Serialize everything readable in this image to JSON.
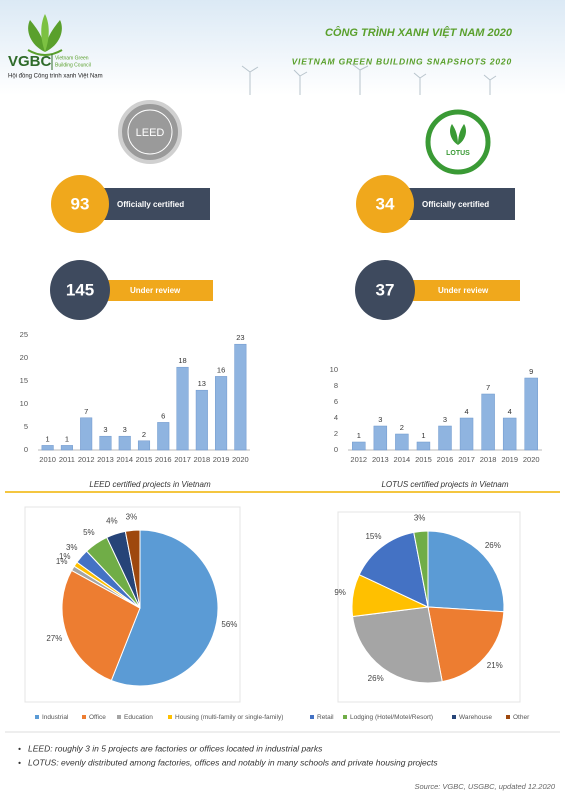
{
  "header": {
    "logo_name": "VGBC",
    "logo_sub1": "Vietnam Green",
    "logo_sub2": "Building Council",
    "logo_vn": "Hội đồng Công trình xanh Việt Nam",
    "title_vn": "CÔNG TRÌNH XANH VIỆT NAM 2020",
    "title_en": "VIETNAM GREEN BUILDING SNAPSHOTS 2020"
  },
  "badges": [
    "LEED",
    "LOTUS"
  ],
  "stats": [
    {
      "value": 93,
      "label": "Officially certified"
    },
    {
      "value": 145,
      "label": "Under review"
    },
    {
      "value": 34,
      "label": "Officially certified"
    },
    {
      "value": 37,
      "label": "Under review"
    }
  ],
  "chart_data": [
    {
      "type": "bar",
      "title": "LEED certified projects in Vietnam",
      "categories": [
        "2010",
        "2011",
        "2012",
        "2013",
        "2014",
        "2015",
        "2016",
        "2017",
        "2018",
        "2019",
        "2020"
      ],
      "values": [
        1,
        1,
        7,
        3,
        3,
        2,
        6,
        18,
        13,
        16,
        23
      ],
      "color": "#8fb4e0",
      "ylim": [
        0,
        25
      ],
      "yticks": [
        0,
        5,
        10,
        15,
        20,
        25
      ]
    },
    {
      "type": "bar",
      "title": "LOTUS certified projects in Vietnam",
      "categories": [
        "2012",
        "2013",
        "2014",
        "2015",
        "2016",
        "2017",
        "2018",
        "2019",
        "2020"
      ],
      "values": [
        1,
        3,
        2,
        1,
        3,
        4,
        7,
        4,
        9
      ],
      "color": "#8fb4e0",
      "ylim": [
        0,
        10
      ],
      "yticks": [
        0,
        2,
        4,
        6,
        8,
        10
      ]
    },
    {
      "type": "pie",
      "categories": [
        "Industrial",
        "Office",
        "Education",
        "Housing (multi-family or single-family)",
        "Retail",
        "Lodging (Hotel/Motel/Resort)",
        "Warehouse",
        "Other"
      ],
      "values": [
        56,
        27,
        1,
        1,
        3,
        5,
        4,
        3
      ],
      "value_labels": [
        "56%",
        "27%",
        "1%",
        "1%",
        "3%",
        "5%",
        "4%",
        "3%"
      ],
      "colors": [
        "#5b9bd5",
        "#ed7d31",
        "#a5a5a5",
        "#ffc000",
        "#4472c4",
        "#70ad47",
        "#264478",
        "#9e480e"
      ]
    },
    {
      "type": "pie",
      "categories": [
        "Industrial",
        "Office",
        "Education",
        "Housing (multi-family or single-family)",
        "Retail",
        "Lodging (Hotel/Motel/Resort)"
      ],
      "values": [
        26,
        21,
        26,
        9,
        15,
        3
      ],
      "value_labels": [
        "26%",
        "21%",
        "26%",
        "9%",
        "15%",
        "3%"
      ],
      "colors": [
        "#5b9bd5",
        "#ed7d31",
        "#a5a5a5",
        "#ffc000",
        "#4472c4",
        "#70ad47"
      ]
    }
  ],
  "notes": [
    "LEED: roughly 3 in 5 projects are factories or offices located in industrial parks",
    "LOTUS: evenly distributed among factories, offices and notably in many schools and private housing projects"
  ],
  "source": "Source: VGBC, USGBC, updated 12.2020"
}
